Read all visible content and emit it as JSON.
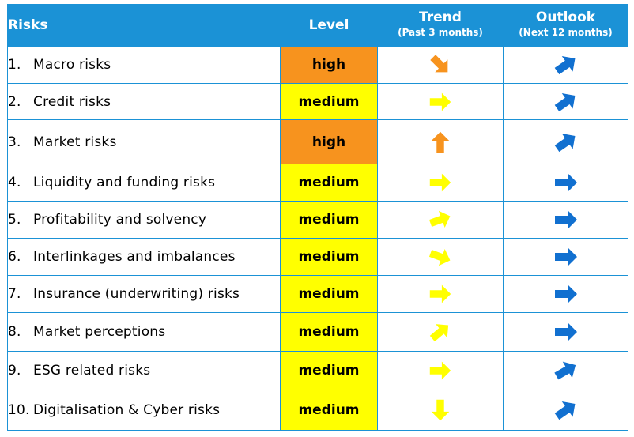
{
  "header": {
    "risks": "Risks",
    "level": "Level",
    "trend": "Trend",
    "trend_sub": "(Past 3 months)",
    "outlook": "Outlook",
    "outlook_sub": "(Next 12 months)"
  },
  "colors": {
    "header_bg": "#1b92d6",
    "border": "#1b92d6",
    "high": "#f7931e",
    "medium": "#ffff00",
    "trend_yellow": "#ffff00",
    "trend_orange": "#f7931e",
    "outlook_blue": "#1170d0"
  },
  "rows": [
    {
      "num": "1.",
      "name": "Macro risks",
      "level": "high",
      "trend": {
        "icon": "arrow-down-right-icon",
        "angle": 45,
        "color": "orange"
      },
      "outlook": {
        "icon": "arrow-up-right-icon",
        "angle": -35
      }
    },
    {
      "num": "2.",
      "name": "Credit risks",
      "level": "medium",
      "trend": {
        "icon": "arrow-right-icon",
        "angle": 0,
        "color": "yellow"
      },
      "outlook": {
        "icon": "arrow-up-right-icon",
        "angle": -35
      }
    },
    {
      "num": "3.",
      "name": "Market risks",
      "level": "high",
      "trend": {
        "icon": "arrow-up-icon",
        "angle": -90,
        "color": "orange"
      },
      "outlook": {
        "icon": "arrow-up-right-icon",
        "angle": -35
      }
    },
    {
      "num": "4.",
      "name": "Liquidity and funding risks",
      "level": "medium",
      "trend": {
        "icon": "arrow-right-icon",
        "angle": 0,
        "color": "yellow"
      },
      "outlook": {
        "icon": "arrow-right-icon",
        "angle": 0
      }
    },
    {
      "num": "5.",
      "name": "Profitability and solvency",
      "level": "medium",
      "trend": {
        "icon": "arrow-up-right-icon",
        "angle": -20,
        "color": "yellow"
      },
      "outlook": {
        "icon": "arrow-right-icon",
        "angle": 0
      }
    },
    {
      "num": "6.",
      "name": "Interlinkages and imbalances",
      "level": "medium",
      "trend": {
        "icon": "arrow-down-right-icon",
        "angle": 20,
        "color": "yellow"
      },
      "outlook": {
        "icon": "arrow-right-icon",
        "angle": 0
      }
    },
    {
      "num": "7.",
      "name": "Insurance (underwriting) risks",
      "level": "medium",
      "trend": {
        "icon": "arrow-right-icon",
        "angle": 0,
        "color": "yellow"
      },
      "outlook": {
        "icon": "arrow-right-icon",
        "angle": 0
      }
    },
    {
      "num": "8.",
      "name": "Market perceptions",
      "level": "medium",
      "trend": {
        "icon": "arrow-up-right-icon",
        "angle": -40,
        "color": "yellow"
      },
      "outlook": {
        "icon": "arrow-right-icon",
        "angle": 0
      }
    },
    {
      "num": "9.",
      "name": "ESG related risks",
      "level": "medium",
      "trend": {
        "icon": "arrow-right-icon",
        "angle": 0,
        "color": "yellow"
      },
      "outlook": {
        "icon": "arrow-up-right-icon",
        "angle": -30
      }
    },
    {
      "num": "10.",
      "name": "Digitalisation & Cyber risks",
      "level": "medium",
      "trend": {
        "icon": "arrow-down-icon",
        "angle": 90,
        "color": "yellow"
      },
      "outlook": {
        "icon": "arrow-up-right-icon",
        "angle": -35
      }
    }
  ]
}
